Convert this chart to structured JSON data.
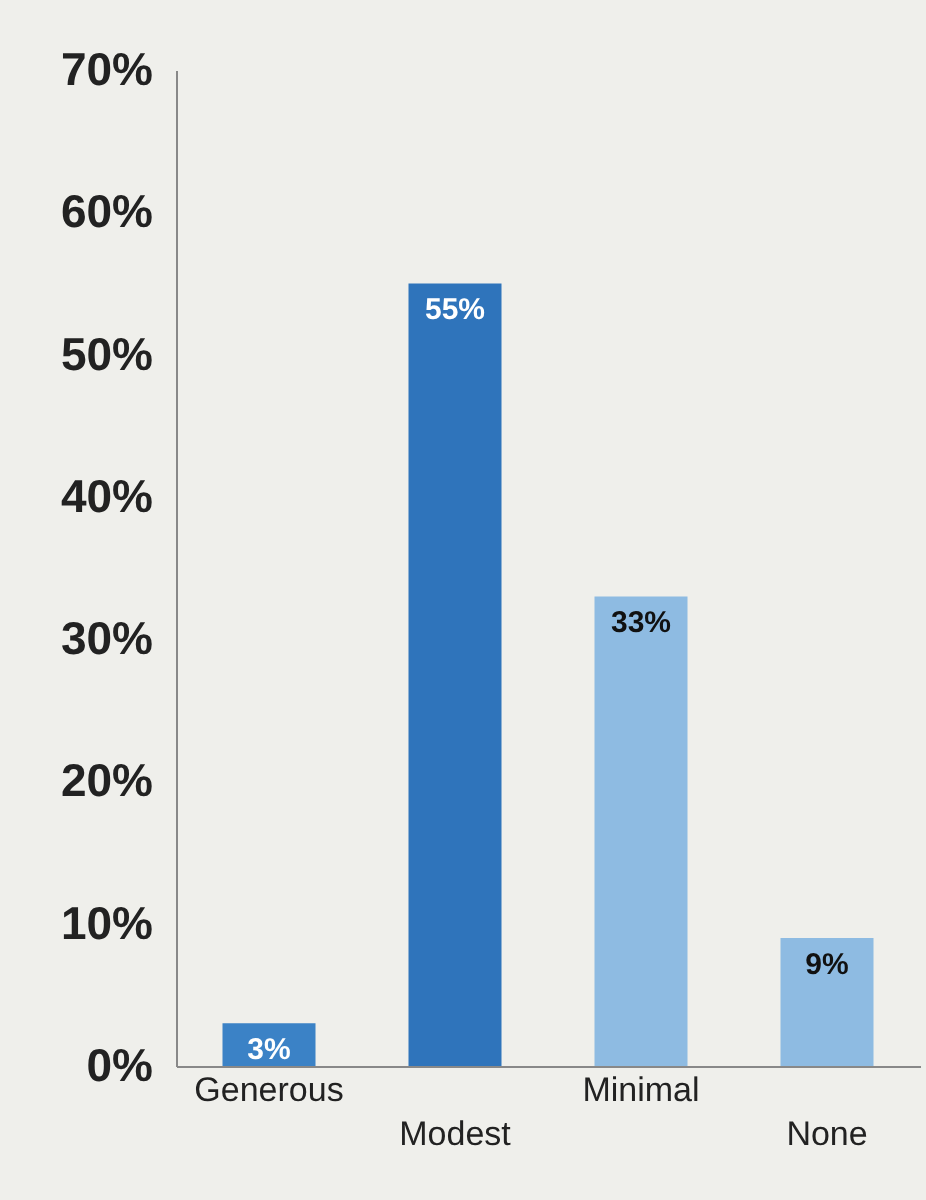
{
  "chart_data": {
    "type": "bar",
    "categories": [
      "Generous",
      "Modest",
      "Minimal",
      "None"
    ],
    "values": [
      3,
      55,
      33,
      9
    ],
    "colors": [
      "#3b82c6",
      "#2f74bb",
      "#8ebbe2",
      "#8ebbe2"
    ],
    "value_labels": [
      "3%",
      "55%",
      "33%",
      "9%"
    ],
    "ylim": [
      0,
      70
    ],
    "yticks": [
      {
        "value": 0,
        "label": "0%"
      },
      {
        "value": 10,
        "label": "10%"
      },
      {
        "value": 20,
        "label": "20%"
      },
      {
        "value": 30,
        "label": "30%"
      },
      {
        "value": 40,
        "label": "40%"
      },
      {
        "value": 50,
        "label": "50%"
      },
      {
        "value": 60,
        "label": "60%"
      },
      {
        "value": 70,
        "label": "70%"
      }
    ],
    "grid": false
  }
}
